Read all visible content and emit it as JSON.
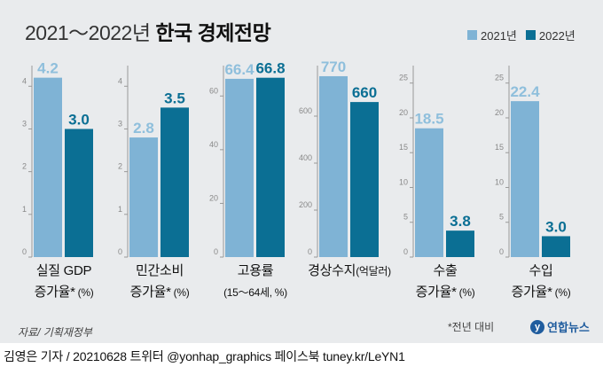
{
  "title": {
    "prefix": "2021～2022년",
    "main": "한국 경제전망"
  },
  "legend": [
    {
      "label": "2021년",
      "color": "#7fb3d5"
    },
    {
      "label": "2022년",
      "color": "#0b6f94"
    }
  ],
  "colors": {
    "y2021": "#7fb3d5",
    "y2022": "#0b6f94",
    "label2021": "#8fbfdc",
    "label2022": "#0b6f94",
    "axis": "#999999"
  },
  "chart_data": [
    {
      "type": "bar",
      "category": "실질 GDP",
      "sub": "증가율*",
      "unit": "(%)",
      "series": [
        {
          "name": "2021년",
          "value": 4.2
        },
        {
          "name": "2022년",
          "value": 3.0
        }
      ],
      "value_labels": [
        "4.2",
        "3.0"
      ],
      "ylim": [
        0,
        4.4
      ],
      "ticks": [
        0,
        1,
        2,
        3,
        4
      ],
      "tick_labels": [
        "0",
        "1",
        "2",
        "3",
        "4"
      ]
    },
    {
      "type": "bar",
      "category": "민간소비",
      "sub": "증가율*",
      "unit": "(%)",
      "series": [
        {
          "name": "2021년",
          "value": 2.8
        },
        {
          "name": "2022년",
          "value": 3.5
        }
      ],
      "value_labels": [
        "2.8",
        "3.5"
      ],
      "ylim": [
        0,
        4.4
      ],
      "ticks": [
        0,
        1,
        2,
        3,
        4
      ],
      "tick_labels": [
        "0",
        "1",
        "2",
        "3",
        "4"
      ]
    },
    {
      "type": "bar",
      "category": "고용률",
      "sub": "",
      "unit": "(15～64세, %)",
      "series": [
        {
          "name": "2021년",
          "value": 66.4
        },
        {
          "name": "2022년",
          "value": 66.8
        }
      ],
      "value_labels": [
        "66.4",
        "66.8"
      ],
      "ylim": [
        0,
        70
      ],
      "ticks": [
        0,
        20,
        40,
        60
      ],
      "tick_labels": [
        "0",
        "20",
        "40",
        "60"
      ]
    },
    {
      "type": "bar",
      "category": "경상수지",
      "sub": "",
      "unit": "(억달러)",
      "series": [
        {
          "name": "2021년",
          "value": 770
        },
        {
          "name": "2022년",
          "value": 660
        }
      ],
      "value_labels": [
        "770",
        "660"
      ],
      "ylim": [
        0,
        800
      ],
      "ticks": [
        0,
        200,
        400,
        600
      ],
      "tick_labels": [
        "0",
        "200",
        "400",
        "600"
      ]
    },
    {
      "type": "bar",
      "category": "수출",
      "sub": "증가율*",
      "unit": "(%)",
      "series": [
        {
          "name": "2021년",
          "value": 18.5
        },
        {
          "name": "2022년",
          "value": 3.8
        }
      ],
      "value_labels": [
        "18.5",
        "3.8"
      ],
      "ylim": [
        0,
        27
      ],
      "ticks": [
        0,
        5,
        10,
        15,
        20,
        25
      ],
      "tick_labels": [
        "0",
        "5",
        "10",
        "15",
        "20",
        "25"
      ]
    },
    {
      "type": "bar",
      "category": "수입",
      "sub": "증가율*",
      "unit": "(%)",
      "series": [
        {
          "name": "2021년",
          "value": 22.4
        },
        {
          "name": "2022년",
          "value": 3.0
        }
      ],
      "value_labels": [
        "22.4",
        "3.0"
      ],
      "ylim": [
        0,
        27
      ],
      "ticks": [
        0,
        5,
        10,
        15,
        20,
        25
      ],
      "tick_labels": [
        "0",
        "5",
        "10",
        "15",
        "20",
        "25"
      ]
    }
  ],
  "source": "자료/ 기획재정부",
  "footnote": "*전년 대비",
  "logo": {
    "mark": "y",
    "text": "연합뉴스"
  },
  "credit": "김영은 기자 / 20210628  트위터 @yonhap_graphics  페이스북 tuney.kr/LeYN1"
}
